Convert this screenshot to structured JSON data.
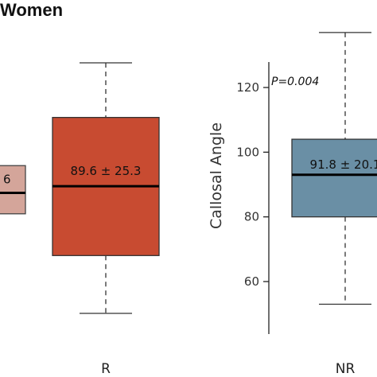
{
  "chart_data": [
    {
      "type": "box",
      "title": "Women",
      "categories": [
        "",
        "R"
      ],
      "series": [
        {
          "category": "",
          "color": "#d4a59a",
          "q1": 81.0,
          "median": 87.5,
          "q3": 96.0,
          "labels": {
            "box": "6"
          }
        },
        {
          "category": "R",
          "color": "#c84b31",
          "whisker_low": 50.0,
          "q1": 68.0,
          "median": 89.6,
          "q3": 111.0,
          "whisker_high": 128.0,
          "labels": {
            "box": "89.6 ± 25.3"
          }
        }
      ],
      "ylim": [
        45,
        135
      ]
    },
    {
      "type": "box",
      "categories": [
        "NR"
      ],
      "ylabel": "Callosal Angle",
      "yticks": [
        60,
        80,
        100,
        120
      ],
      "ylim": [
        47,
        128
      ],
      "annotation": "P=0.004",
      "series": [
        {
          "category": "NR",
          "color": "#6a8fa5",
          "whisker_low": 53.0,
          "q1": 80.0,
          "median": 93.0,
          "q3": 104.0,
          "whisker_high": 137.0,
          "labels": {
            "box": "91.8 ± 20.1"
          }
        }
      ]
    }
  ]
}
